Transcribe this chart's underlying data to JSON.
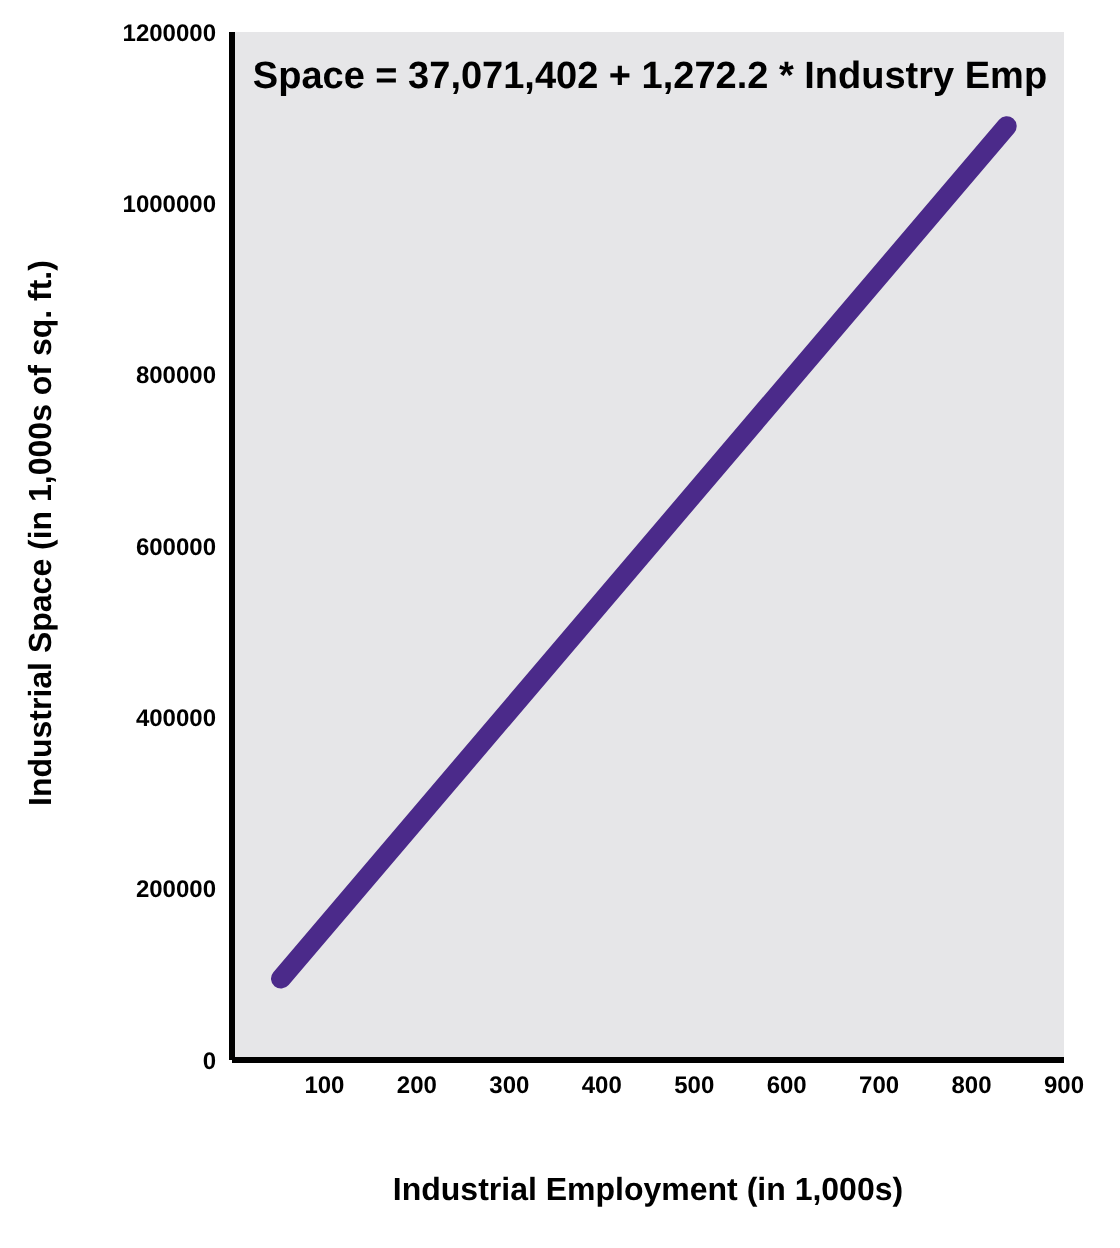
{
  "chart_data": {
    "type": "line",
    "xlabel": "Industrial Employment (in 1,000s)",
    "ylabel": "Industrial Space (in 1,000s of sq. ft.)",
    "annotations": [
      "Space = 37,071,402 + 1,272.2 * Industry Emp"
    ],
    "x": [
      53,
      838
    ],
    "series": [
      {
        "color": "#4b2a8a",
        "values": [
          95000,
          1090000
        ]
      }
    ],
    "xlim": [
      0,
      900
    ],
    "xticks": [
      100,
      200,
      300,
      400,
      500,
      600,
      700,
      800,
      900
    ],
    "ylim": [
      0,
      1200000
    ],
    "yticks": [
      0,
      200000,
      400000,
      600000,
      800000,
      1000000,
      1200000
    ],
    "grid": false,
    "legend": false,
    "marker": "none",
    "line_style": "solid"
  }
}
